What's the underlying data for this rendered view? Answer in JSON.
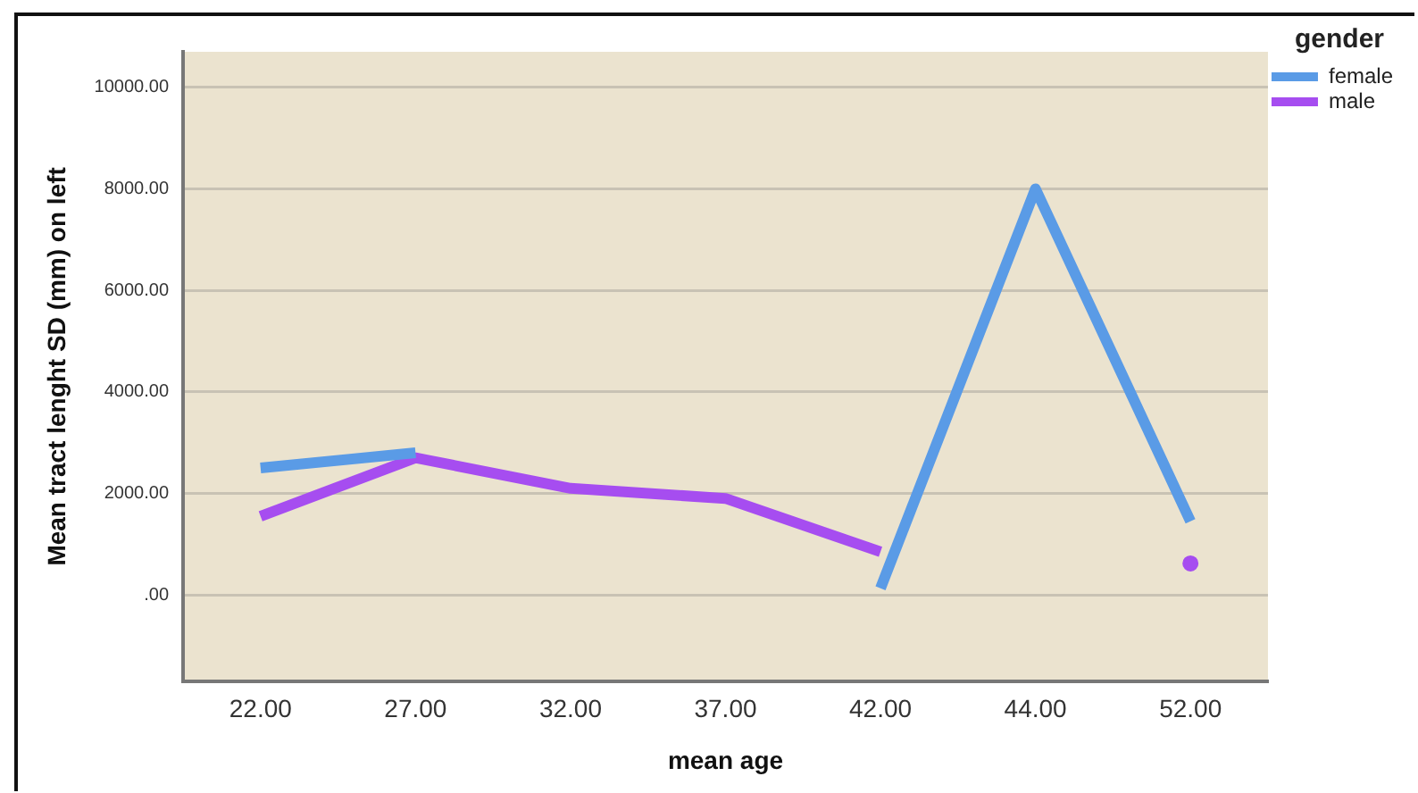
{
  "chart_data": {
    "type": "line",
    "xlabel": "mean age",
    "ylabel": "Mean tract lenght SD (mm) on left",
    "legend_title": "gender",
    "categories": [
      "22.00",
      "27.00",
      "32.00",
      "37.00",
      "42.00",
      "44.00",
      "52.00"
    ],
    "series": [
      {
        "name": "female",
        "color": "#5a9be6",
        "values": [
          2500,
          2800,
          null,
          null,
          130,
          8000,
          1450
        ]
      },
      {
        "name": "male",
        "color": "#a64df0",
        "values": [
          1550,
          2700,
          2100,
          1900,
          850,
          null,
          620
        ]
      }
    ],
    "ylim": [
      -1700,
      10700
    ],
    "yticks": [
      {
        "value": 0,
        "label": ".00"
      },
      {
        "value": 2000,
        "label": "2000.00"
      },
      {
        "value": 4000,
        "label": "4000.00"
      },
      {
        "value": 6000,
        "label": "6000.00"
      },
      {
        "value": 8000,
        "label": "8000.00"
      },
      {
        "value": 10000,
        "label": "10000.00"
      }
    ],
    "grid": "y",
    "legend": "top right",
    "marker": "none",
    "line_style": "solid"
  }
}
